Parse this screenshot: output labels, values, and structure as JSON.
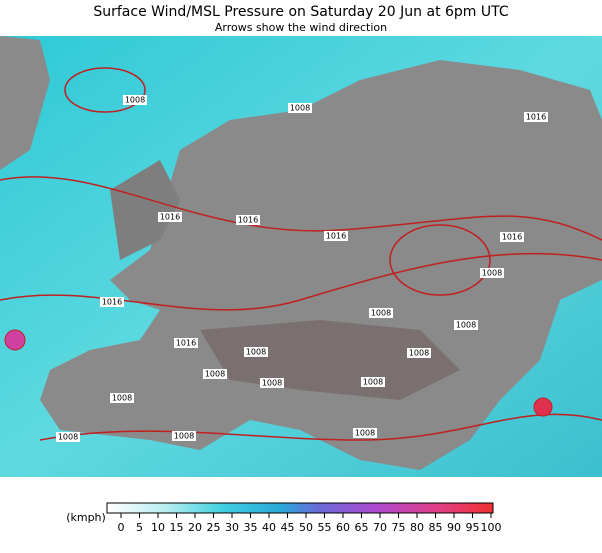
{
  "header": {
    "title": "Surface Wind/MSL Pressure on Saturday 20 Jun at 6pm UTC",
    "subtitle": "Arrows show the wind direction"
  },
  "isobar_labels": [
    "1008",
    "1008",
    "1016",
    "1016",
    "1016",
    "1016",
    "1016",
    "1008",
    "1016",
    "1008",
    "1008",
    "1016",
    "1008",
    "1008",
    "1008",
    "1008",
    "1008",
    "1008",
    "1008",
    "1008",
    "1008"
  ],
  "legend": {
    "unit": "(kmph)",
    "ticks": [
      0,
      5,
      10,
      15,
      20,
      25,
      30,
      35,
      40,
      45,
      50,
      55,
      60,
      65,
      70,
      75,
      80,
      85,
      90,
      95,
      100
    ]
  }
}
